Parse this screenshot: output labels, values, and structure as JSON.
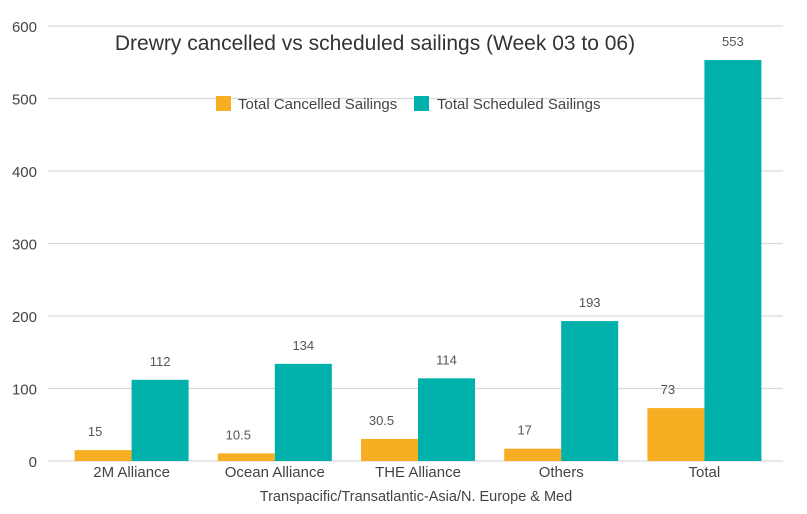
{
  "chart_data": {
    "type": "bar",
    "title": "Drewry cancelled vs scheduled sailings (Week 03 to 06)",
    "xlabel": "Transpacific/Transatlantic-Asia/N. Europe & Med",
    "ylabel": "",
    "categories": [
      "2M Alliance",
      "Ocean Alliance",
      "THE Alliance",
      "Others",
      "Total"
    ],
    "series": [
      {
        "name": "Total Cancelled Sailings",
        "color": "#f8ae22",
        "values": [
          15,
          10.5,
          30.5,
          17,
          73
        ],
        "labels": [
          "15",
          "10.5",
          "30.5",
          "17",
          "73"
        ]
      },
      {
        "name": "Total Scheduled Sailings",
        "color": "#00b0aa",
        "values": [
          112,
          134,
          114,
          193,
          553
        ],
        "labels": [
          "112",
          "134",
          "114",
          "193",
          "553"
        ]
      }
    ],
    "ylim": [
      0,
      600
    ],
    "yticks": [
      0,
      100,
      200,
      300,
      400,
      500,
      600
    ],
    "ytick_labels": [
      "0",
      "100",
      "200",
      "300",
      "400",
      "500",
      "600"
    ],
    "grid": true,
    "legend_position": "top-center"
  }
}
